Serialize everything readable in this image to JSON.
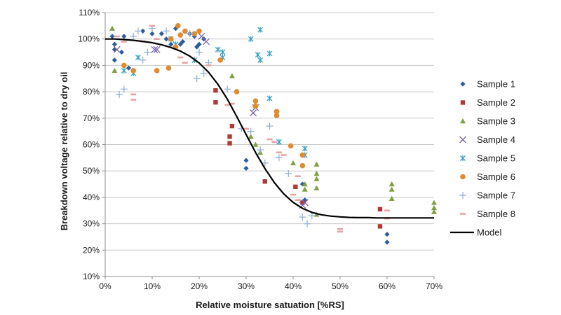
{
  "chart_data": {
    "type": "scatter",
    "title": "",
    "xlabel": "Relative moisture satuation [%RS]",
    "ylabel": "Breakdown voltage  relative to dry oil",
    "xlim": [
      0,
      70
    ],
    "ylim": [
      10,
      110
    ],
    "x_ticks": [
      0,
      10,
      20,
      30,
      40,
      50,
      60,
      70
    ],
    "y_ticks": [
      10,
      20,
      30,
      40,
      50,
      60,
      70,
      80,
      90,
      100,
      110
    ],
    "x_tick_labels": [
      "0%",
      "10%",
      "20%",
      "30%",
      "40%",
      "50%",
      "60%",
      "70%"
    ],
    "y_tick_labels": [
      "10%",
      "20%",
      "30%",
      "40%",
      "50%",
      "60%",
      "70%",
      "80%",
      "90%",
      "100%",
      "110%"
    ],
    "grid": true,
    "legend_position": "right",
    "series": [
      {
        "name": "Sample 1",
        "marker": "diamond",
        "color": "#2e5c9e",
        "points": [
          [
            1.5,
            101
          ],
          [
            2,
            98
          ],
          [
            2,
            96
          ],
          [
            3.5,
            95
          ],
          [
            4,
            101
          ],
          [
            5,
            89
          ],
          [
            8,
            103
          ],
          [
            10,
            102
          ],
          [
            12,
            102
          ],
          [
            13,
            100
          ],
          [
            14,
            98
          ],
          [
            15,
            104
          ],
          [
            16,
            98
          ],
          [
            16.5,
            99
          ],
          [
            18,
            102
          ],
          [
            19,
            101
          ],
          [
            19.5,
            97
          ],
          [
            20,
            98
          ],
          [
            21,
            100
          ],
          [
            30,
            54
          ],
          [
            30,
            51
          ],
          [
            42,
            45
          ],
          [
            42.5,
            39
          ],
          [
            60,
            26
          ],
          [
            60,
            23
          ],
          [
            2,
            92
          ]
        ]
      },
      {
        "name": "Sample 2",
        "marker": "square",
        "color": "#b23a36",
        "points": [
          [
            23.5,
            80.5
          ],
          [
            23.5,
            76
          ],
          [
            26.5,
            63
          ],
          [
            26.5,
            60.5
          ],
          [
            27,
            67
          ],
          [
            34,
            46
          ],
          [
            40.5,
            44
          ],
          [
            42,
            38
          ],
          [
            58.5,
            35.5
          ],
          [
            58.5,
            29
          ]
        ]
      },
      {
        "name": "Sample 3",
        "marker": "triangle",
        "color": "#7ea040",
        "points": [
          [
            1.5,
            104
          ],
          [
            2,
            88
          ],
          [
            27,
            86
          ],
          [
            31,
            63
          ],
          [
            32,
            60
          ],
          [
            33,
            57
          ],
          [
            40,
            53
          ],
          [
            42.5,
            45
          ],
          [
            42.5,
            43
          ],
          [
            45,
            52.5
          ],
          [
            45,
            49
          ],
          [
            45,
            47
          ],
          [
            45,
            43.5
          ],
          [
            45,
            33.5
          ],
          [
            61,
            45
          ],
          [
            61,
            43
          ],
          [
            61,
            39.5
          ],
          [
            70,
            38
          ],
          [
            70,
            36
          ],
          [
            70,
            34.5
          ]
        ]
      },
      {
        "name": "Sample 4",
        "marker": "x",
        "color": "#7a63a7",
        "points": [
          [
            2.5,
            96
          ],
          [
            10.5,
            96
          ],
          [
            11,
            96
          ],
          [
            20.5,
            101
          ],
          [
            21.5,
            99
          ],
          [
            31.5,
            72
          ],
          [
            32,
            74
          ],
          [
            42,
            37
          ],
          [
            42.5,
            38
          ]
        ]
      },
      {
        "name": "Sample 5",
        "marker": "asterisk",
        "color": "#36a0c4",
        "points": [
          [
            4,
            88
          ],
          [
            6,
            87
          ],
          [
            7,
            93
          ],
          [
            14,
            100
          ],
          [
            15,
            98
          ],
          [
            19,
            92
          ],
          [
            24,
            96
          ],
          [
            25,
            95
          ],
          [
            31,
            100
          ],
          [
            32.5,
            94
          ],
          [
            33,
            92
          ],
          [
            33,
            103.5
          ],
          [
            35,
            94.5
          ],
          [
            35,
            77.5
          ],
          [
            37,
            61
          ],
          [
            42.5,
            58.5
          ],
          [
            42.5,
            56
          ],
          [
            25,
            93
          ]
        ]
      },
      {
        "name": "Sample 6",
        "marker": "circle",
        "color": "#e08b2e",
        "points": [
          [
            4,
            90
          ],
          [
            6,
            88
          ],
          [
            11,
            88
          ],
          [
            13.5,
            89
          ],
          [
            14,
            100
          ],
          [
            15,
            97
          ],
          [
            15.5,
            105
          ],
          [
            16,
            101.5
          ],
          [
            17,
            103
          ],
          [
            19,
            102
          ],
          [
            20,
            103
          ],
          [
            24.5,
            92
          ],
          [
            28,
            80
          ],
          [
            32,
            76.5
          ],
          [
            32,
            74.5
          ],
          [
            36.5,
            72.5
          ],
          [
            36.5,
            71
          ],
          [
            42,
            56
          ],
          [
            42,
            52
          ],
          [
            39.5,
            59.5
          ]
        ]
      },
      {
        "name": "Sample 7",
        "marker": "plus",
        "color": "#95b3d7",
        "points": [
          [
            3,
            79
          ],
          [
            4,
            81
          ],
          [
            6,
            101
          ],
          [
            7,
            103
          ],
          [
            8,
            92
          ],
          [
            9,
            95
          ],
          [
            10,
            104
          ],
          [
            13,
            103
          ],
          [
            18,
            102
          ],
          [
            19.5,
            85
          ],
          [
            21,
            87
          ],
          [
            22,
            91
          ],
          [
            26,
            81
          ],
          [
            29,
            66
          ],
          [
            31,
            65
          ],
          [
            33,
            58
          ],
          [
            34,
            53
          ],
          [
            35,
            67
          ],
          [
            37,
            55
          ],
          [
            39,
            49
          ],
          [
            42,
            32.5
          ],
          [
            43,
            30
          ],
          [
            44,
            33
          ],
          [
            20,
            95
          ]
        ]
      },
      {
        "name": "Sample 8",
        "marker": "dash",
        "color": "#e6a3a0",
        "points": [
          [
            2.5,
            101
          ],
          [
            4,
            99
          ],
          [
            6,
            79
          ],
          [
            6,
            77
          ],
          [
            8,
            99
          ],
          [
            10,
            105
          ],
          [
            11,
            100
          ],
          [
            16,
            93
          ],
          [
            17,
            91
          ],
          [
            22,
            90
          ],
          [
            26,
            75
          ],
          [
            27,
            75.5
          ],
          [
            30,
            66
          ],
          [
            35,
            62
          ],
          [
            36,
            61
          ],
          [
            37,
            57
          ],
          [
            38,
            56
          ],
          [
            40,
            41
          ],
          [
            41,
            39
          ],
          [
            41,
            48
          ],
          [
            50,
            28
          ],
          [
            50,
            27
          ],
          [
            60,
            35
          ],
          [
            60,
            32
          ]
        ]
      }
    ],
    "model": {
      "name": "Model",
      "color": "#000000",
      "x": [
        0,
        2,
        4,
        6,
        8,
        10,
        12,
        14,
        16,
        18,
        20,
        22,
        24,
        26,
        28,
        30,
        32,
        34,
        36,
        38,
        40,
        42,
        44,
        46,
        48,
        50,
        52,
        54,
        56,
        58,
        60,
        62,
        64,
        66,
        68,
        70
      ],
      "y": [
        100,
        100,
        99.8,
        99.5,
        99.1,
        98.6,
        97.8,
        96.8,
        95.4,
        93.5,
        90.9,
        87.4,
        82.8,
        77.2,
        70.6,
        63.8,
        57,
        50.9,
        45.6,
        41.3,
        38.1,
        35.8,
        34.3,
        33.4,
        32.9,
        32.6,
        32.4,
        32.3,
        32.3,
        32.2,
        32.2,
        32.2,
        32.2,
        32.2,
        32.2,
        32.2
      ]
    }
  }
}
